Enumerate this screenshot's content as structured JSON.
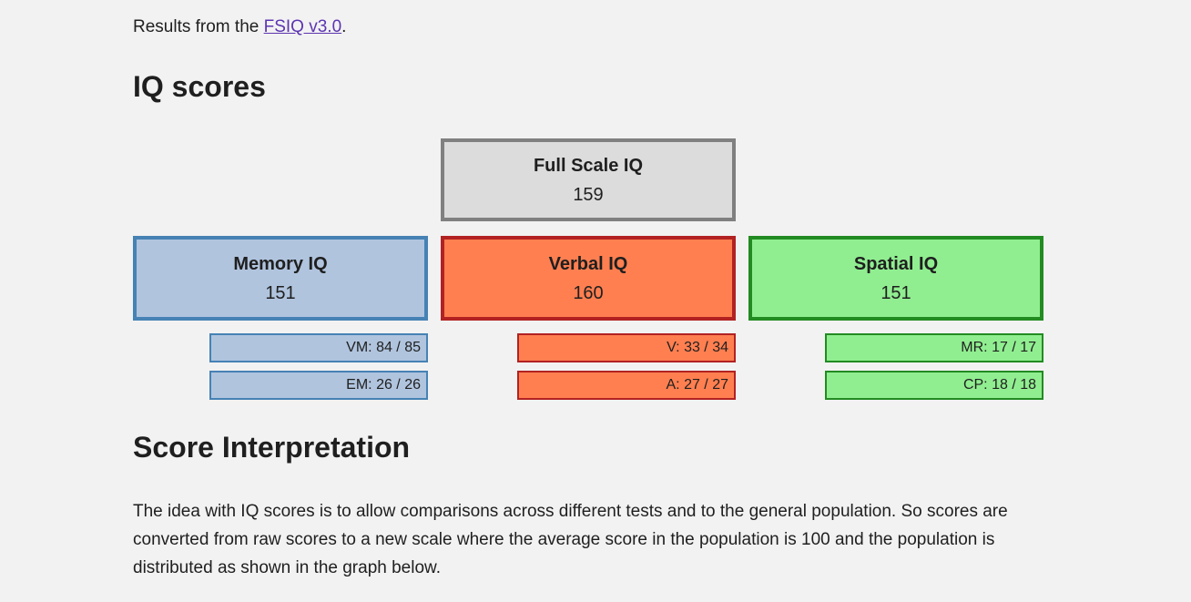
{
  "page": {
    "background_color": "#f2f2f2",
    "text_color": "#1f1f1f"
  },
  "intro": {
    "prefix": "Results from the ",
    "link_label": "FSIQ v3.0",
    "suffix": ".",
    "link_color": "#5c35b1"
  },
  "headings": {
    "scores": "IQ scores",
    "interpretation": "Score Interpretation"
  },
  "scores": {
    "full_scale": {
      "label": "Full Scale IQ",
      "score": "159",
      "fill_color": "#dcdcdc",
      "border_color": "#808080"
    },
    "categories": [
      {
        "label": "Memory IQ",
        "score": "151",
        "fill_color": "#b0c4de",
        "border_color": "#4682b4",
        "subtests": [
          {
            "code": "VM",
            "raw": 84,
            "max": 85,
            "display": "VM: 84 / 85"
          },
          {
            "code": "EM",
            "raw": 26,
            "max": 26,
            "display": "EM: 26 / 26"
          }
        ]
      },
      {
        "label": "Verbal IQ",
        "score": "160",
        "fill_color": "#ff7f50",
        "border_color": "#b22222",
        "subtests": [
          {
            "code": "V",
            "raw": 33,
            "max": 34,
            "display": "V: 33 / 34"
          },
          {
            "code": "A",
            "raw": 27,
            "max": 27,
            "display": "A: 27 / 27"
          }
        ]
      },
      {
        "label": "Spatial IQ",
        "score": "151",
        "fill_color": "#90ee90",
        "border_color": "#228b22",
        "subtests": [
          {
            "code": "MR",
            "raw": 17,
            "max": 17,
            "display": "MR: 17 / 17"
          },
          {
            "code": "CP",
            "raw": 18,
            "max": 18,
            "display": "CP: 18 / 18"
          }
        ]
      }
    ]
  },
  "interpretation": {
    "paragraph": "The idea with IQ scores is to allow comparisons across different tests and to the general population. So scores are converted from raw scores to a new scale where the average score in the population is 100 and the population is distributed as shown in the graph below."
  }
}
